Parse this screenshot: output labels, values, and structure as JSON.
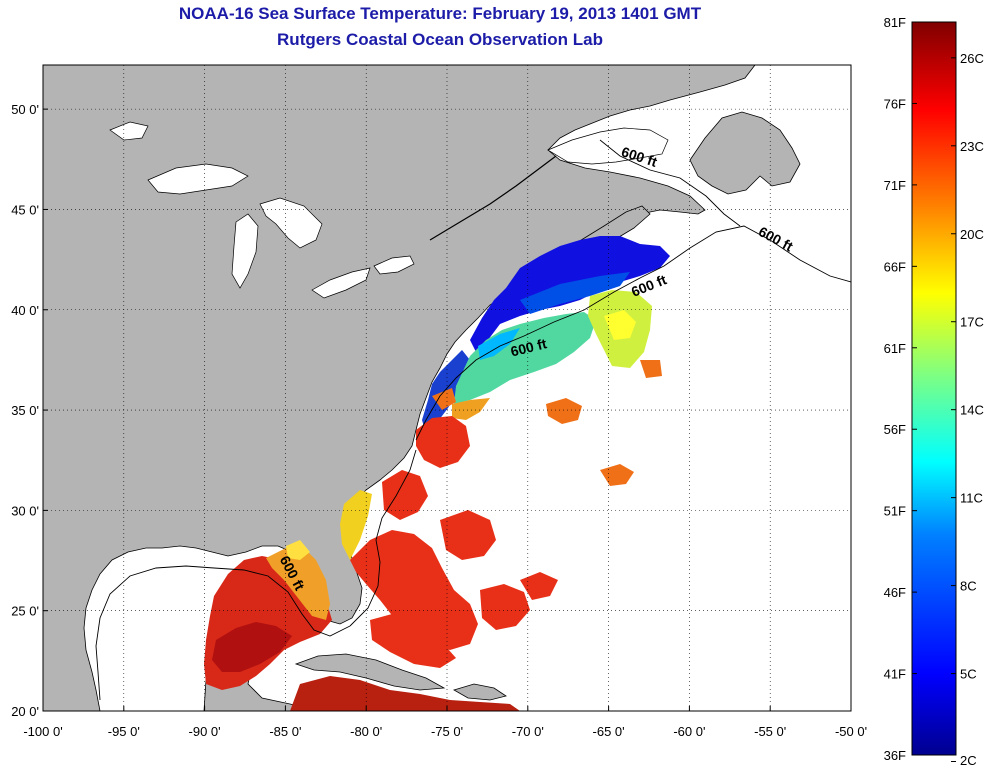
{
  "title": "NOAA-16 Sea Surface Temperature:  February 19, 2013 1401 GMT",
  "subtitle": "Rutgers Coastal Ocean Observation Lab",
  "map": {
    "lon_range": [
      -100,
      -50
    ],
    "lat_range": [
      20,
      52.2
    ],
    "x_ticks": [
      {
        "value": -100,
        "label": "-100 0'"
      },
      {
        "value": -95,
        "label": "-95 0'"
      },
      {
        "value": -90,
        "label": "-90 0'"
      },
      {
        "value": -85,
        "label": "-85 0'"
      },
      {
        "value": -80,
        "label": "-80 0'"
      },
      {
        "value": -75,
        "label": "-75 0'"
      },
      {
        "value": -70,
        "label": "-70 0'"
      },
      {
        "value": -65,
        "label": "-65 0'"
      },
      {
        "value": -60,
        "label": "-60 0'"
      },
      {
        "value": -55,
        "label": "-55 0'"
      },
      {
        "value": -50,
        "label": "-50 0'"
      }
    ],
    "y_ticks": [
      {
        "value": 20,
        "label": "20 0'"
      },
      {
        "value": 25,
        "label": "25 0'"
      },
      {
        "value": 30,
        "label": "30 0'"
      },
      {
        "value": 35,
        "label": "35 0'"
      },
      {
        "value": 40,
        "label": "40 0'"
      },
      {
        "value": 45,
        "label": "45 0'"
      },
      {
        "value": 50,
        "label": "50 0'"
      }
    ],
    "grid": true,
    "land_color": "#b4b4b4",
    "ocean_color": "#ffffff",
    "isobath_labels": [
      "600 ft",
      "600 ft",
      "600 ft",
      "600 ft",
      "600 ft"
    ]
  },
  "colorbar": {
    "range_f": [
      36,
      81
    ],
    "fahrenheit_labels": [
      "81F",
      "76F",
      "71F",
      "66F",
      "61F",
      "56F",
      "51F",
      "46F",
      "41F",
      "36F"
    ],
    "celsius_labels": [
      "26C",
      "23C",
      "20C",
      "17C",
      "14C",
      "11C",
      "8C",
      "5C",
      "2C"
    ],
    "colors": [
      "#00008f",
      "#0000ff",
      "#0080ff",
      "#00ffff",
      "#80ff80",
      "#ffff00",
      "#ff8000",
      "#ff0000",
      "#800000"
    ]
  }
}
